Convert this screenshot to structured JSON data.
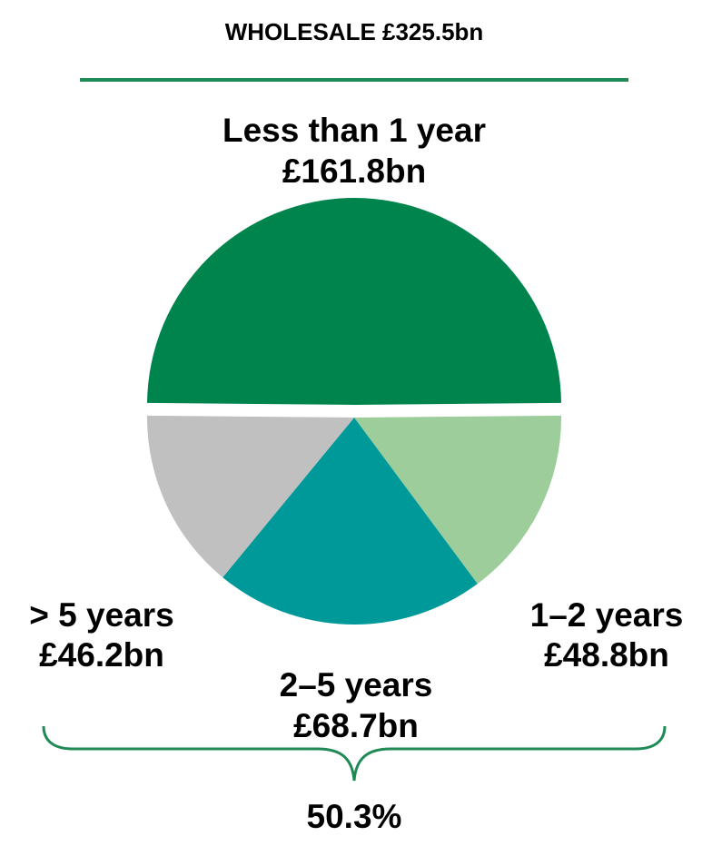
{
  "chart_data": {
    "type": "pie",
    "title": "WHOLESALE £325.5bn",
    "total": 325.5,
    "unit": "£bn",
    "slices": [
      {
        "name": "Less than 1 year",
        "value": 161.8,
        "value_label": "£161.8bn",
        "color": "#00844d",
        "exploded": true
      },
      {
        "name": "1–2 years",
        "value": 48.8,
        "value_label": "£48.8bn",
        "color": "#9dcd9a",
        "exploded": false
      },
      {
        "name": "2–5 years",
        "value": 68.7,
        "value_label": "£68.7bn",
        "color": "#00999a",
        "exploded": false
      },
      {
        "name": "> 5 years",
        "value": 46.2,
        "value_label": "£46.2bn",
        "color": "#c0c0c0",
        "exploded": false
      }
    ],
    "bracket_annotation": "50.3%",
    "accent_color": "#1f8a56"
  }
}
